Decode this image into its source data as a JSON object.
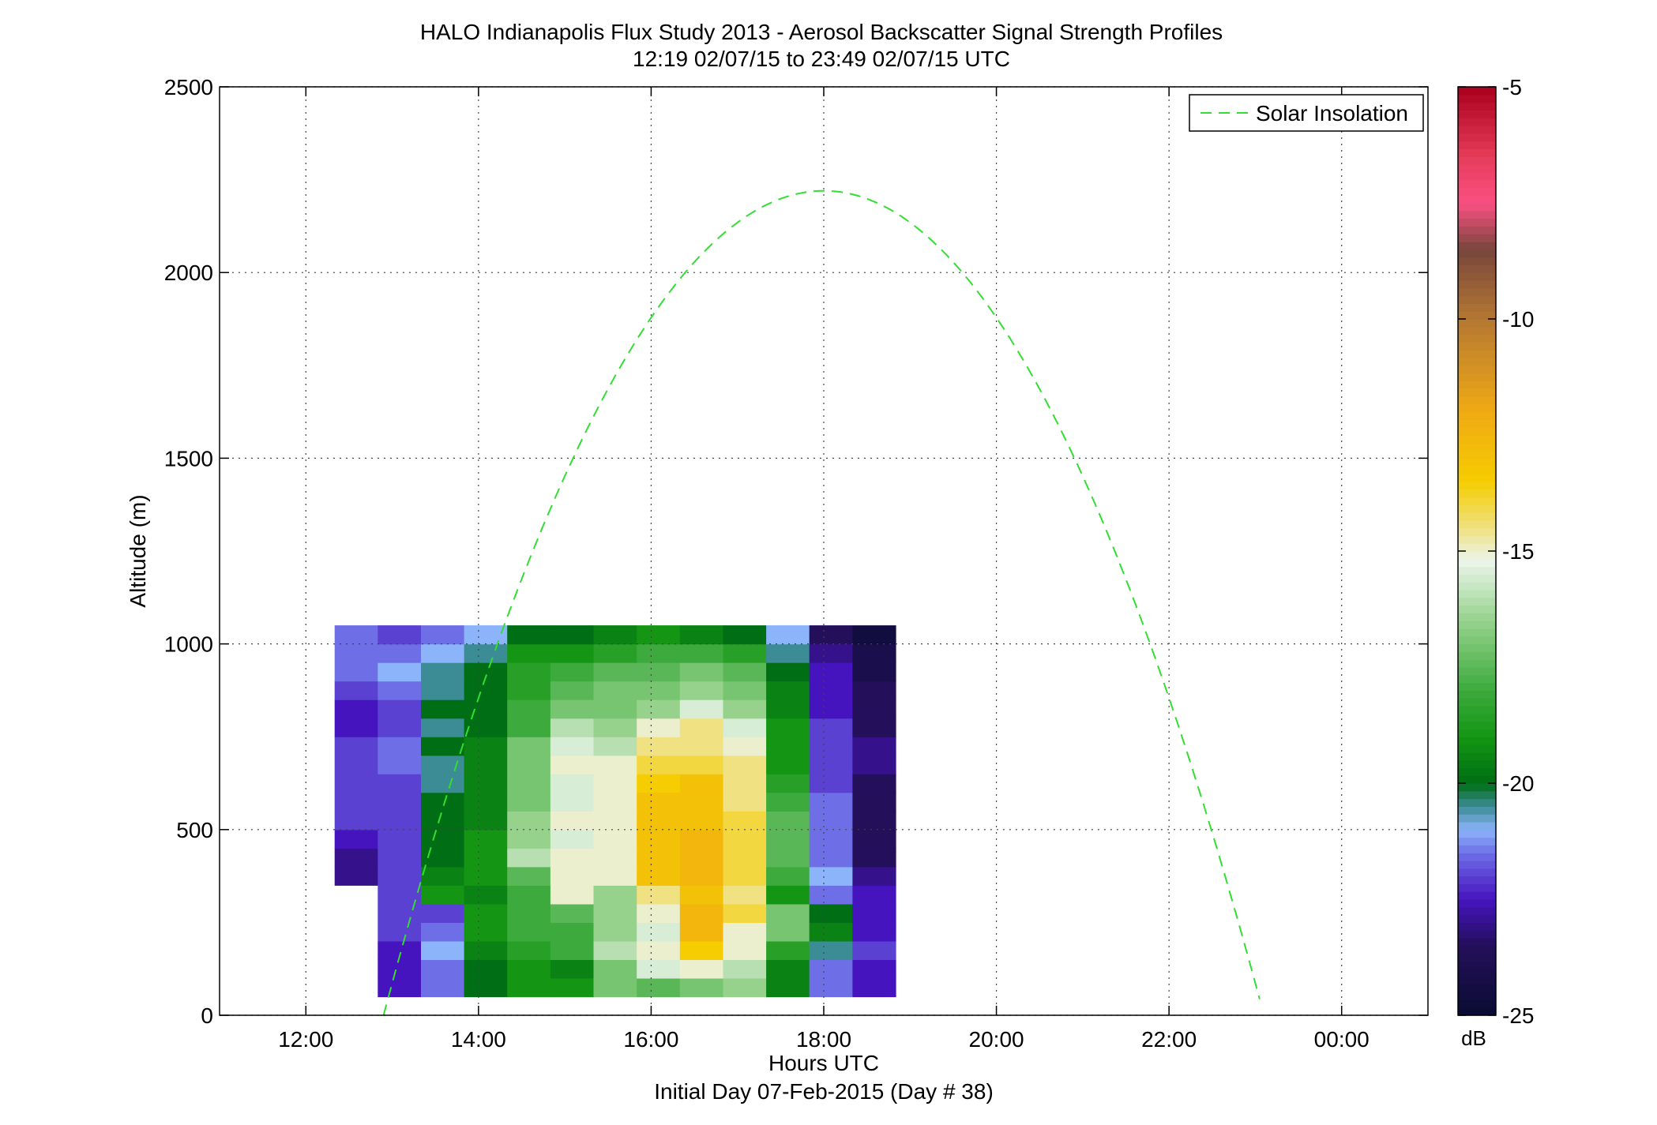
{
  "chart_data": {
    "type": "heatmap",
    "title": "HALO Indianapolis Flux Study 2013 - Aerosol Backscatter Signal Strength Profiles",
    "subtitle": "12:19 02/07/15 to 23:49 02/07/15  UTC",
    "xlabel": "Hours UTC",
    "xlabel2": "Initial Day 07-Feb-2015 (Day # 38)",
    "ylabel": "Altitude (m)",
    "xlim": [
      11,
      25
    ],
    "ylim": [
      0,
      2500
    ],
    "x_ticks": [
      12,
      14,
      16,
      18,
      20,
      22,
      24
    ],
    "x_tick_labels": [
      "12:00",
      "14:00",
      "16:00",
      "18:00",
      "20:00",
      "22:00",
      "00:00"
    ],
    "y_ticks": [
      0,
      500,
      1000,
      1500,
      2000,
      2500
    ],
    "y_tick_labels": [
      "0",
      "500",
      "1000",
      "1500",
      "2000",
      "2500"
    ],
    "grid": true,
    "legend_position": "top-right",
    "legend": [
      "Solar Insolation"
    ],
    "series_color": "#33dd33",
    "colorbar": {
      "label": "dB",
      "min": -25,
      "max": -5,
      "ticks": [
        -5,
        -10,
        -15,
        -20,
        -25
      ],
      "tick_labels": [
        "-5",
        "-10",
        "-15",
        "-20",
        "-25"
      ]
    },
    "time_start": 12.333,
    "time_step": 0.5,
    "alt_start": 50,
    "alt_step": 50,
    "cell_values": [
      [
        null,
        -22.5,
        -21.5,
        -20.0,
        -19.0,
        -19.0,
        -17.0,
        -17.5,
        -17.0,
        -16.5,
        -19.5,
        -21.5,
        -22.5
      ],
      [
        null,
        -22.5,
        -21.5,
        -20.0,
        -19.0,
        -19.5,
        -17.0,
        -15.5,
        -15.0,
        -16.0,
        -19.5,
        -21.5,
        -22.5
      ],
      [
        null,
        -22.5,
        -21.0,
        -19.5,
        -18.5,
        -18.0,
        -16.0,
        -15.0,
        -13.5,
        -15.0,
        -18.5,
        -20.5,
        -22.0
      ],
      [
        null,
        -22.0,
        -21.5,
        -19.0,
        -18.0,
        -18.0,
        -16.5,
        -15.5,
        -12.5,
        -15.0,
        -17.0,
        -19.5,
        -22.5
      ],
      [
        null,
        -22.0,
        -22.0,
        -19.0,
        -18.0,
        -17.5,
        -16.5,
        -15.0,
        -12.5,
        -14.0,
        -17.0,
        -20.0,
        -22.5
      ],
      [
        null,
        -22.0,
        -19.0,
        -19.5,
        -18.0,
        -15.0,
        -16.5,
        -14.5,
        -13.0,
        -14.5,
        -19.0,
        -21.5,
        -22.5
      ],
      [
        -23.0,
        -22.0,
        -19.5,
        -19.0,
        -17.5,
        -15.0,
        -15.0,
        -13.0,
        -12.5,
        -14.0,
        -18.0,
        -21.0,
        -23.0
      ],
      [
        -23.0,
        -22.0,
        -20.0,
        -19.0,
        -16.0,
        -15.0,
        -15.0,
        -13.0,
        -12.5,
        -14.0,
        -17.5,
        -21.5,
        -23.5
      ],
      [
        -22.5,
        -22.0,
        -20.0,
        -19.0,
        -16.5,
        -15.5,
        -15.0,
        -13.0,
        -12.5,
        -14.0,
        -17.5,
        -21.5,
        -23.5
      ],
      [
        -22.0,
        -22.0,
        -20.0,
        -19.5,
        -16.5,
        -15.0,
        -15.0,
        -13.0,
        -13.0,
        -14.0,
        -17.5,
        -21.5,
        -23.5
      ],
      [
        -22.0,
        -22.0,
        -20.0,
        -19.5,
        -17.0,
        -15.5,
        -15.0,
        -13.0,
        -13.0,
        -14.5,
        -18.0,
        -21.5,
        -23.5
      ],
      [
        -22.0,
        -22.0,
        -20.5,
        -19.5,
        -17.0,
        -15.5,
        -15.0,
        -13.5,
        -13.0,
        -14.5,
        -18.5,
        -22.0,
        -23.5
      ],
      [
        -22.0,
        -21.5,
        -20.5,
        -19.5,
        -17.0,
        -15.0,
        -15.0,
        -14.0,
        -14.0,
        -14.5,
        -19.0,
        -22.0,
        -23.0
      ],
      [
        -22.0,
        -21.5,
        -20.0,
        -19.5,
        -17.0,
        -15.5,
        -16.0,
        -14.5,
        -14.5,
        -15.0,
        -19.0,
        -22.0,
        -23.0
      ],
      [
        -22.5,
        -22.0,
        -20.5,
        -20.0,
        -18.0,
        -16.0,
        -16.5,
        -15.0,
        -14.5,
        -15.5,
        -19.0,
        -22.0,
        -23.5
      ],
      [
        -22.5,
        -22.0,
        -20.0,
        -20.0,
        -18.0,
        -17.0,
        -17.0,
        -16.5,
        -15.5,
        -16.5,
        -19.5,
        -22.5,
        -23.5
      ],
      [
        -22.0,
        -21.5,
        -20.5,
        -20.0,
        -18.5,
        -17.5,
        -17.0,
        -17.0,
        -16.5,
        -17.0,
        -19.5,
        -22.5,
        -23.5
      ],
      [
        -21.5,
        -21.0,
        -20.5,
        -20.0,
        -18.5,
        -18.0,
        -17.5,
        -17.5,
        -17.0,
        -17.5,
        -20.0,
        -22.5,
        -24.0
      ],
      [
        -21.5,
        -21.5,
        -21.0,
        -20.5,
        -19.0,
        -19.0,
        -18.5,
        -18.0,
        -18.0,
        -18.5,
        -20.5,
        -23.0,
        -24.0
      ],
      [
        -21.5,
        -22.0,
        -21.5,
        -21.0,
        -20.0,
        -20.0,
        -19.5,
        -19.0,
        -19.5,
        -20.0,
        -21.0,
        -23.5,
        -24.5
      ]
    ],
    "solar_insolation_peak_hour": 18.0,
    "solar_insolation_peak_alt": 2220
  }
}
